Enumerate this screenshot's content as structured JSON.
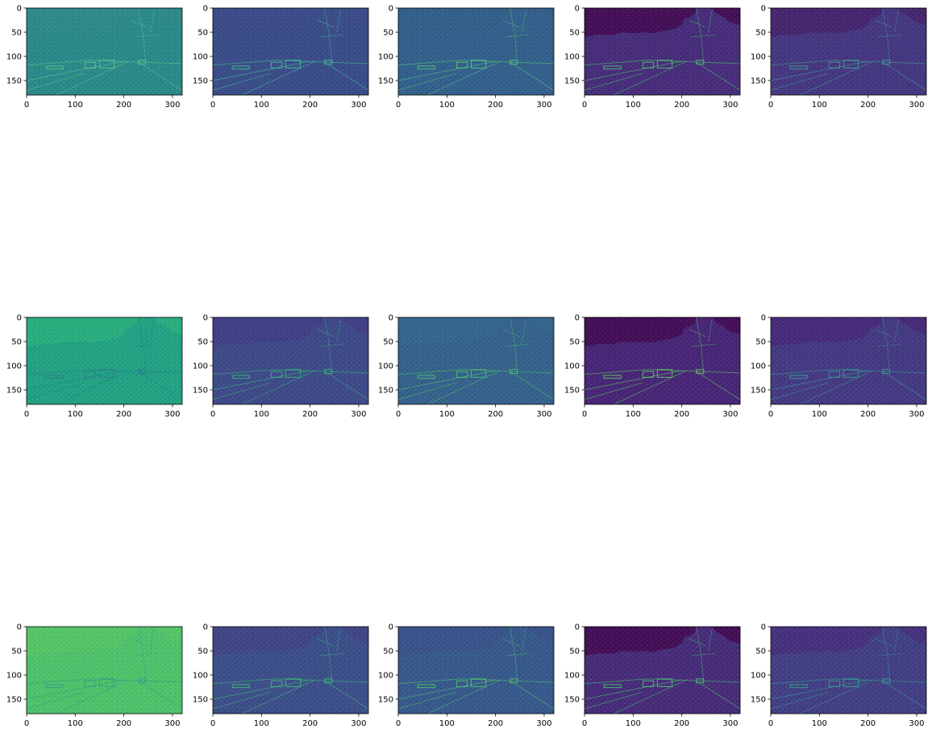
{
  "figure": {
    "background": "#ffffff",
    "rows": 3,
    "cols": 5
  },
  "chart_data": [
    {
      "type": "heatmap",
      "row": 1,
      "col": 1,
      "colormap": "viridis",
      "base_color": "#2b8a8a",
      "sky_color": "#2e8a8a",
      "edge_color": "#5fc48a",
      "xlim": [
        0,
        320
      ],
      "ylim": [
        180,
        0
      ],
      "xticks": [
        0,
        100,
        200,
        300
      ],
      "yticks": [
        0,
        50,
        100,
        150
      ],
      "xlabel": "",
      "ylabel": "",
      "title": ""
    },
    {
      "type": "heatmap",
      "row": 1,
      "col": 2,
      "colormap": "viridis",
      "base_color": "#3a4d8a",
      "sky_color": "#3b4c8a",
      "edge_color": "#3fbf8e",
      "xlim": [
        0,
        320
      ],
      "ylim": [
        180,
        0
      ],
      "xticks": [
        0,
        100,
        200,
        300
      ],
      "yticks": [
        0,
        50,
        100,
        150
      ],
      "xlabel": "",
      "ylabel": "",
      "title": ""
    },
    {
      "type": "heatmap",
      "row": 1,
      "col": 3,
      "colormap": "viridis",
      "base_color": "#33608c",
      "sky_color": "#335f8b",
      "edge_color": "#55c57a",
      "xlim": [
        0,
        320
      ],
      "ylim": [
        180,
        0
      ],
      "xticks": [
        0,
        100,
        200,
        300
      ],
      "yticks": [
        0,
        50,
        100,
        150
      ],
      "xlabel": "",
      "ylabel": "",
      "title": ""
    },
    {
      "type": "heatmap",
      "row": 1,
      "col": 4,
      "colormap": "viridis",
      "base_color": "#472d7b",
      "sky_color": "#440f57",
      "edge_color": "#4ac16d",
      "xlim": [
        0,
        320
      ],
      "ylim": [
        180,
        0
      ],
      "xticks": [
        0,
        100,
        200,
        300
      ],
      "yticks": [
        0,
        50,
        100,
        150
      ],
      "xlabel": "",
      "ylabel": "",
      "title": ""
    },
    {
      "type": "heatmap",
      "row": 1,
      "col": 5,
      "colormap": "viridis",
      "base_color": "#453781",
      "sky_color": "#46266f",
      "edge_color": "#3fa08e",
      "xlim": [
        0,
        320
      ],
      "ylim": [
        180,
        0
      ],
      "xticks": [
        0,
        100,
        200,
        300
      ],
      "yticks": [
        0,
        50,
        100,
        150
      ],
      "xlabel": "",
      "ylabel": "",
      "title": ""
    },
    {
      "type": "heatmap",
      "row": 2,
      "col": 1,
      "colormap": "viridis",
      "base_color": "#22a384",
      "sky_color": "#29af7f",
      "edge_color": "#2a7b8e",
      "xlim": [
        0,
        320
      ],
      "ylim": [
        180,
        0
      ],
      "xticks": [
        0,
        100,
        200,
        300
      ],
      "yticks": [
        0,
        50,
        100,
        150
      ],
      "xlabel": "",
      "ylabel": "",
      "title": ""
    },
    {
      "type": "heatmap",
      "row": 2,
      "col": 2,
      "colormap": "viridis",
      "base_color": "#3e4a89",
      "sky_color": "#413f87",
      "edge_color": "#35b779",
      "xlim": [
        0,
        320
      ],
      "ylim": [
        180,
        0
      ],
      "xticks": [
        0,
        100,
        200,
        300
      ],
      "yticks": [
        0,
        50,
        100,
        150
      ],
      "xlabel": "",
      "ylabel": "",
      "title": ""
    },
    {
      "type": "heatmap",
      "row": 2,
      "col": 3,
      "colormap": "viridis",
      "base_color": "#35628c",
      "sky_color": "#34668d",
      "edge_color": "#4cc26c",
      "xlim": [
        0,
        320
      ],
      "ylim": [
        180,
        0
      ],
      "xticks": [
        0,
        100,
        200,
        300
      ],
      "yticks": [
        0,
        50,
        100,
        150
      ],
      "xlabel": "",
      "ylabel": "",
      "title": ""
    },
    {
      "type": "heatmap",
      "row": 2,
      "col": 4,
      "colormap": "viridis",
      "base_color": "#482677",
      "sky_color": "#440f57",
      "edge_color": "#5ec962",
      "xlim": [
        0,
        320
      ],
      "ylim": [
        180,
        0
      ],
      "xticks": [
        0,
        100,
        200,
        300
      ],
      "yticks": [
        0,
        50,
        100,
        150
      ],
      "xlabel": "",
      "ylabel": "",
      "title": ""
    },
    {
      "type": "heatmap",
      "row": 2,
      "col": 5,
      "colormap": "viridis",
      "base_color": "#443a83",
      "sky_color": "#472a7a",
      "edge_color": "#3b9c8e",
      "xlim": [
        0,
        320
      ],
      "ylim": [
        180,
        0
      ],
      "xticks": [
        0,
        100,
        200,
        300
      ],
      "yticks": [
        0,
        50,
        100,
        150
      ],
      "xlabel": "",
      "ylabel": "",
      "title": ""
    },
    {
      "type": "heatmap",
      "row": 3,
      "col": 1,
      "colormap": "viridis",
      "base_color": "#4fc36b",
      "sky_color": "#55c667",
      "edge_color": "#2e9b8b",
      "xlim": [
        0,
        320
      ],
      "ylim": [
        180,
        0
      ],
      "xticks": [
        0,
        100,
        200,
        300
      ],
      "yticks": [
        0,
        50,
        100,
        150
      ],
      "xlabel": "",
      "ylabel": "",
      "title": ""
    },
    {
      "type": "heatmap",
      "row": 3,
      "col": 2,
      "colormap": "viridis",
      "base_color": "#3c4f8a",
      "sky_color": "#404688",
      "edge_color": "#3dbc74",
      "xlim": [
        0,
        320
      ],
      "ylim": [
        180,
        0
      ],
      "xticks": [
        0,
        100,
        200,
        300
      ],
      "yticks": [
        0,
        50,
        100,
        150
      ],
      "xlabel": "",
      "ylabel": "",
      "title": ""
    },
    {
      "type": "heatmap",
      "row": 3,
      "col": 3,
      "colormap": "viridis",
      "base_color": "#37598c",
      "sky_color": "#3a538b",
      "edge_color": "#4ec36b",
      "xlim": [
        0,
        320
      ],
      "ylim": [
        180,
        0
      ],
      "xticks": [
        0,
        100,
        200,
        300
      ],
      "yticks": [
        0,
        50,
        100,
        150
      ],
      "xlabel": "",
      "ylabel": "",
      "title": ""
    },
    {
      "type": "heatmap",
      "row": 3,
      "col": 4,
      "colormap": "viridis",
      "base_color": "#472c7a",
      "sky_color": "#440f57",
      "edge_color": "#48c16e",
      "xlim": [
        0,
        320
      ],
      "ylim": [
        180,
        0
      ],
      "xticks": [
        0,
        100,
        200,
        300
      ],
      "yticks": [
        0,
        50,
        100,
        150
      ],
      "xlabel": "",
      "ylabel": "",
      "title": ""
    },
    {
      "type": "heatmap",
      "row": 3,
      "col": 5,
      "colormap": "viridis",
      "base_color": "#423f85",
      "sky_color": "#46317e",
      "edge_color": "#36a18a",
      "xlim": [
        0,
        320
      ],
      "ylim": [
        180,
        0
      ],
      "xticks": [
        0,
        100,
        200,
        300
      ],
      "yticks": [
        0,
        50,
        100,
        150
      ],
      "xlabel": "",
      "ylabel": "",
      "title": ""
    }
  ]
}
